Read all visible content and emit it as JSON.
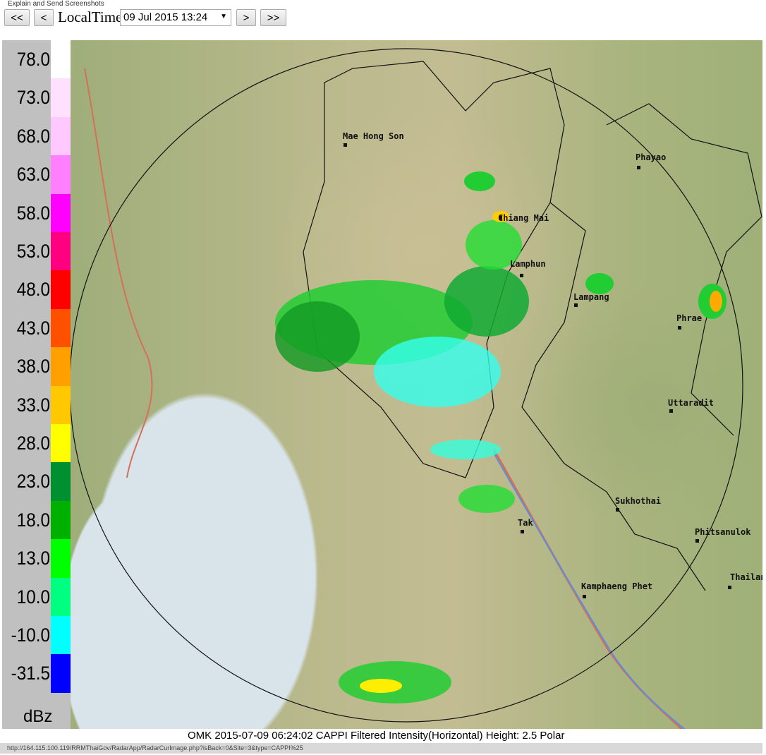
{
  "toolbar": {
    "explain_label": "Explain and Send Screenshots",
    "first_label": "<<",
    "prev_label": "<",
    "time_label": "LocalTime",
    "selected_time": "09 Jul 2015 13:24",
    "next_label": ">",
    "last_label": ">>"
  },
  "legend": {
    "unit": "dBz",
    "bands": [
      {
        "label": "78.0",
        "color": "#ffffff"
      },
      {
        "label": "73.0",
        "color": "#ffe0ff"
      },
      {
        "label": "68.0",
        "color": "#ffc8ff"
      },
      {
        "label": "63.0",
        "color": "#ff80ff"
      },
      {
        "label": "58.0",
        "color": "#ff00ff"
      },
      {
        "label": "53.0",
        "color": "#ff0080"
      },
      {
        "label": "48.0",
        "color": "#ff0000"
      },
      {
        "label": "43.0",
        "color": "#ff5000"
      },
      {
        "label": "38.0",
        "color": "#ffa000"
      },
      {
        "label": "33.0",
        "color": "#ffc800"
      },
      {
        "label": "28.0",
        "color": "#ffff00"
      },
      {
        "label": "23.0",
        "color": "#009030"
      },
      {
        "label": "18.0",
        "color": "#00b000"
      },
      {
        "label": "13.0",
        "color": "#00ff00"
      },
      {
        "label": "10.0",
        "color": "#00ff80"
      },
      {
        "label": "-10.0",
        "color": "#00ffff"
      },
      {
        "label": "-31.5",
        "color": "#0000ff"
      }
    ]
  },
  "map": {
    "cities": [
      "Mae Hong Son",
      "Chiang Mai",
      "Lamphun",
      "Lampang",
      "Phayao",
      "Phrae",
      "Uttaradit",
      "Sukhothai",
      "Tak",
      "Phitsanulok",
      "Kamphaeng Phet",
      "Thailan"
    ]
  },
  "caption": "OMK 2015-07-09 06:24:02 CAPPI Filtered Intensity(Horizontal)  Height: 2.5 Polar",
  "status_url": "http://164.115.100.119/RRMThaiGov/RadarApp/RadarCurImage.php?isBack=0&Site=3&type=CAPPI%25"
}
